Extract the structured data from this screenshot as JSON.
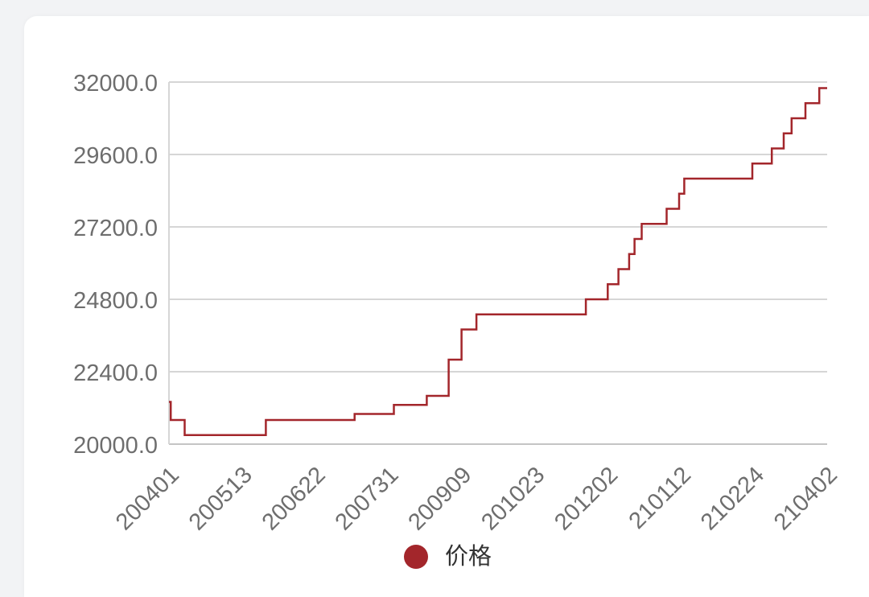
{
  "chart_data": {
    "type": "line",
    "interpolation": "step-after",
    "ylim": [
      20000,
      32000
    ],
    "y_ticks": [
      "20000.0",
      "22400.0",
      "24800.0",
      "27200.0",
      "29600.0",
      "32000.0"
    ],
    "x_ticks": [
      "200401",
      "200513",
      "200622",
      "200731",
      "200909",
      "201023",
      "201202",
      "210112",
      "210224",
      "210402"
    ],
    "grid": "horizontal",
    "legend": "bottom",
    "series": [
      {
        "name": "价格",
        "color": "#a3262b",
        "points": [
          {
            "x": "200401",
            "y": 21400
          },
          {
            "x": "200402",
            "y": 20800
          },
          {
            "x": "200410",
            "y": 20300
          },
          {
            "x": "200526",
            "y": 20800
          },
          {
            "x": "200713",
            "y": 21000
          },
          {
            "x": "200803",
            "y": 21300
          },
          {
            "x": "200821",
            "y": 21600
          },
          {
            "x": "200902",
            "y": 22800
          },
          {
            "x": "200909",
            "y": 23800
          },
          {
            "x": "200918",
            "y": 24300
          },
          {
            "x": "201120",
            "y": 24800
          },
          {
            "x": "201202",
            "y": 25300
          },
          {
            "x": "201208",
            "y": 25800
          },
          {
            "x": "201214",
            "y": 26300
          },
          {
            "x": "201217",
            "y": 26800
          },
          {
            "x": "201221",
            "y": 27300
          },
          {
            "x": "210104",
            "y": 27800
          },
          {
            "x": "210111",
            "y": 28300
          },
          {
            "x": "210114",
            "y": 28800
          },
          {
            "x": "210223",
            "y": 29300
          },
          {
            "x": "210305",
            "y": 29800
          },
          {
            "x": "210311",
            "y": 30300
          },
          {
            "x": "210315",
            "y": 30800
          },
          {
            "x": "210322",
            "y": 31300
          },
          {
            "x": "210329",
            "y": 31800
          },
          {
            "x": "210402",
            "y": 31800
          }
        ]
      }
    ]
  }
}
